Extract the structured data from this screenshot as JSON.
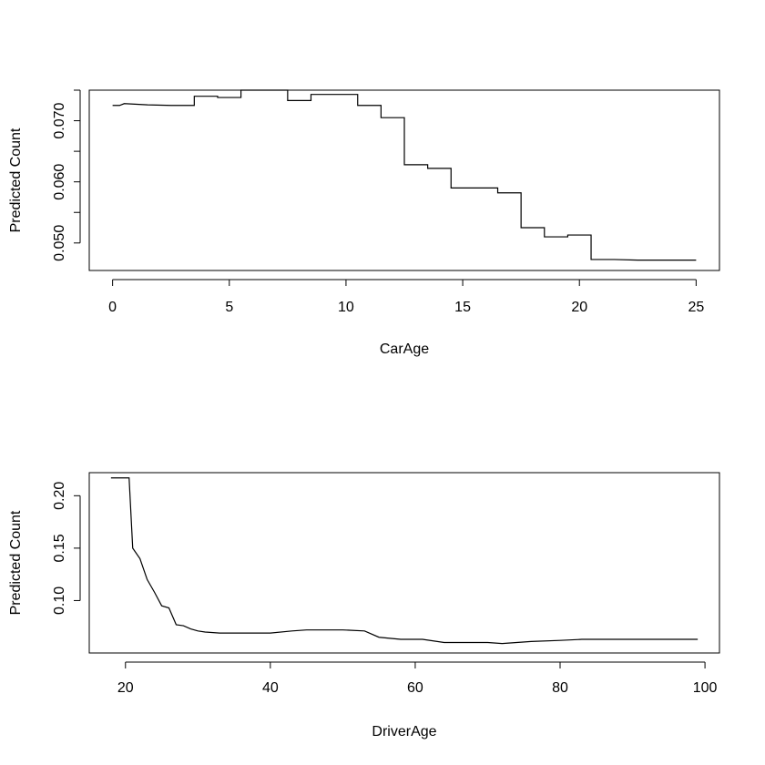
{
  "chart_data": [
    {
      "type": "line",
      "title": "",
      "xlabel": "CarAge",
      "ylabel": "Predicted Count",
      "xlim": [
        -1,
        26
      ],
      "ylim": [
        0.0455,
        0.075
      ],
      "xticks": [
        0,
        5,
        10,
        15,
        20,
        25
      ],
      "yticks": [
        0.05,
        0.055,
        0.06,
        0.065,
        0.07,
        0.075
      ],
      "yticklabels": [
        "0.050",
        "",
        "0.060",
        "",
        "0.070",
        ""
      ],
      "grid": false,
      "series": [
        {
          "x": [
            0,
            0.3,
            0.5,
            1.5,
            2.5,
            3.5,
            3.5,
            4.5,
            4.5,
            5.5,
            5.5,
            6.5,
            7.5,
            7.5,
            8.5,
            8.5,
            9.5,
            10.5,
            10.5,
            11.5,
            11.5,
            12.5,
            12.5,
            13.5,
            13.5,
            14.5,
            14.5,
            15.5,
            16.5,
            16.5,
            17.5,
            17.5,
            18.5,
            18.5,
            19.5,
            19.5,
            20.5,
            20.5,
            21.5,
            22.5,
            25
          ],
          "y": [
            0.0725,
            0.0725,
            0.0728,
            0.0726,
            0.0725,
            0.0725,
            0.074,
            0.074,
            0.0738,
            0.0738,
            0.075,
            0.075,
            0.075,
            0.0733,
            0.0733,
            0.0743,
            0.0743,
            0.0743,
            0.0725,
            0.0725,
            0.0705,
            0.0705,
            0.0628,
            0.0628,
            0.0622,
            0.0622,
            0.059,
            0.059,
            0.059,
            0.0582,
            0.0582,
            0.0525,
            0.0525,
            0.051,
            0.051,
            0.0513,
            0.0513,
            0.0473,
            0.0473,
            0.0472,
            0.0472
          ]
        }
      ]
    },
    {
      "type": "line",
      "title": "",
      "xlabel": "DriverAge",
      "ylabel": "Predicted Count",
      "xlim": [
        15,
        102
      ],
      "ylim": [
        0.05,
        0.222
      ],
      "xticks": [
        20,
        40,
        60,
        80,
        100
      ],
      "yticks": [
        0.1,
        0.15,
        0.2
      ],
      "yticklabels": [
        "0.10",
        "0.15",
        "0.20"
      ],
      "grid": false,
      "series": [
        {
          "x": [
            18,
            20,
            20.5,
            21,
            22,
            23,
            24,
            25,
            26,
            27,
            28,
            29,
            30,
            31,
            33,
            35,
            40,
            43,
            45,
            50,
            53,
            55,
            58,
            61,
            64,
            70,
            72,
            74,
            76,
            80,
            83,
            90,
            99
          ],
          "y": [
            0.217,
            0.217,
            0.217,
            0.15,
            0.14,
            0.12,
            0.108,
            0.095,
            0.093,
            0.077,
            0.076,
            0.073,
            0.071,
            0.07,
            0.069,
            0.069,
            0.069,
            0.071,
            0.072,
            0.072,
            0.071,
            0.065,
            0.063,
            0.063,
            0.06,
            0.06,
            0.059,
            0.06,
            0.061,
            0.062,
            0.063,
            0.063,
            0.063
          ]
        }
      ]
    }
  ]
}
